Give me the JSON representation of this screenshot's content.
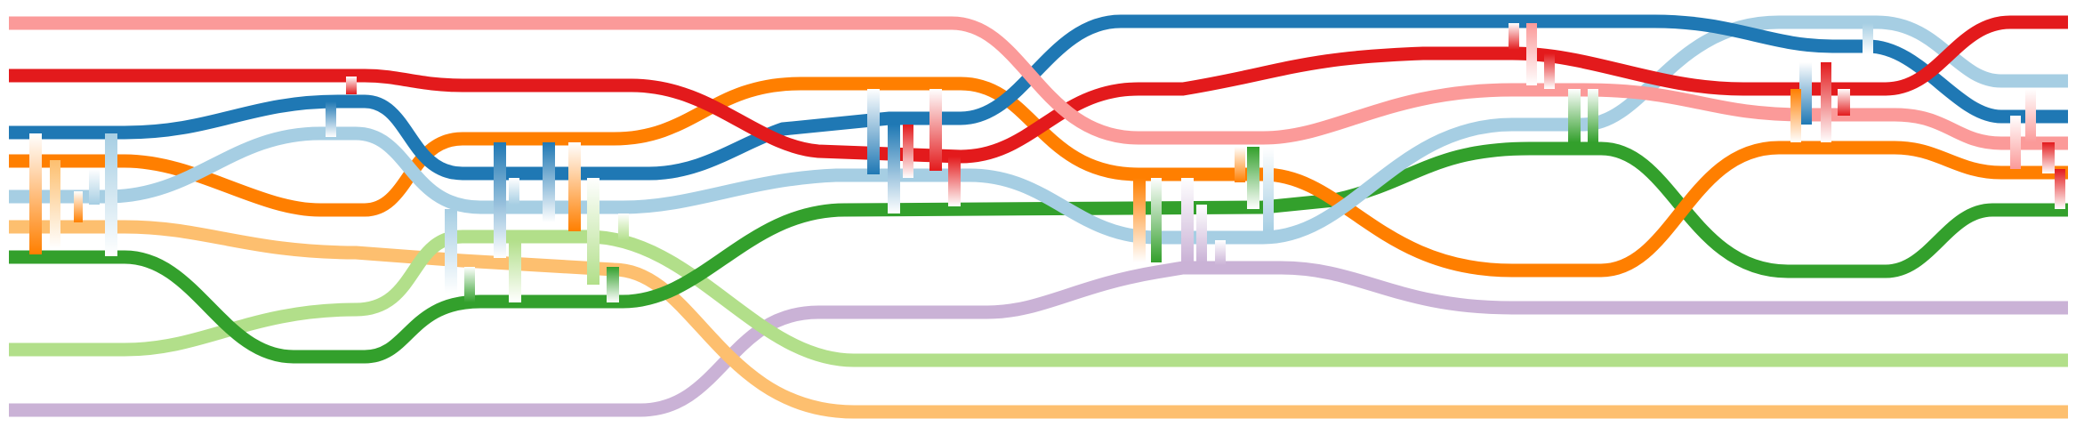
{
  "diagram": {
    "type": "storyline-lanes",
    "background": "#ffffff",
    "palette": {
      "dark_blue": "#1f78b4",
      "light_blue": "#a6cee3",
      "red": "#e31a1c",
      "pink": "#fb9a99",
      "orange": "#ff7f00",
      "light_orange": "#fdbf6f",
      "dark_green": "#33a02c",
      "light_green": "#b2df8a",
      "purple": "#cab2d6"
    },
    "lanes": [
      {
        "id": "lane-pink",
        "color": "#fb9a99"
      },
      {
        "id": "lane-red",
        "color": "#e31a1c"
      },
      {
        "id": "lane-dark-blue",
        "color": "#1f78b4"
      },
      {
        "id": "lane-light-blue",
        "color": "#a6cee3"
      },
      {
        "id": "lane-orange",
        "color": "#ff7f00"
      },
      {
        "id": "lane-light-orange",
        "color": "#fdbf6f"
      },
      {
        "id": "lane-dark-green",
        "color": "#33a02c"
      },
      {
        "id": "lane-light-green",
        "color": "#b2df8a"
      },
      {
        "id": "lane-purple",
        "color": "#cab2d6"
      }
    ]
  }
}
